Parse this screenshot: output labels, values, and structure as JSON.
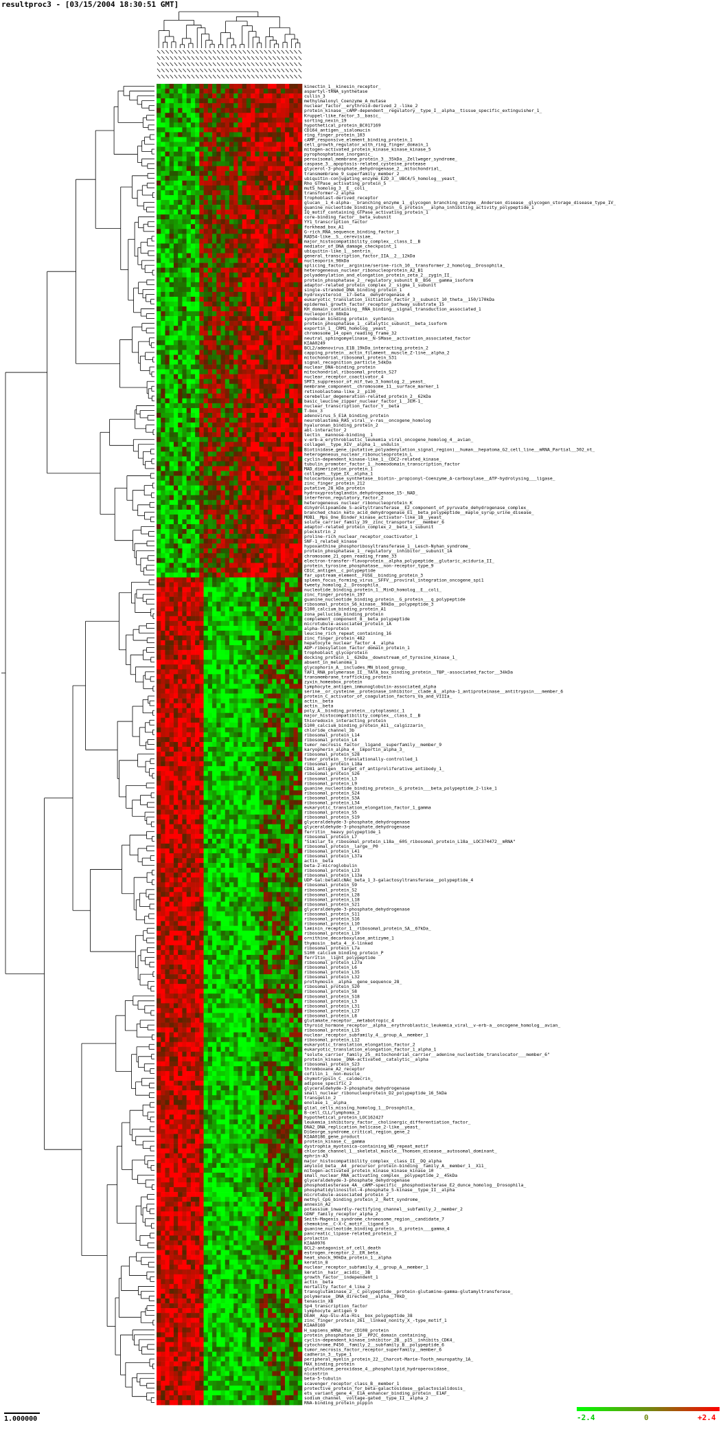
{
  "window": {
    "title": "resultproc3 - [03/15/2004 18:30:51  GMT]"
  },
  "scale": {
    "label": "1.000000"
  },
  "legend": {
    "min_label": "-2.4",
    "mid_label": "0",
    "max_label": "+2.4",
    "min_color": "#00ff00",
    "mid_color": "#6f8a10",
    "max_color": "#ff0000"
  },
  "chart_data": {
    "type": "heatmap",
    "columns": 34,
    "color_range": [
      -2.4,
      2.4
    ],
    "row_labels": [
      "kinectin_1__kinesin_receptor_",
      "aspartyl-tRNA_synthetase",
      "cullin_3",
      "methylmalonyl_Coenzyme_A_mutase",
      "nuclear_factor__erythroid-derived_2_-like_2",
      "protein_kinase__cAMP-dependent__regulatory__type_I__alpha__tissue_specific_extinguisher_1_",
      "Kruppel-like_factor_3__basic_",
      "sorting_nexin_19",
      "hypothetical_protein_BC017169",
      "CD164_antigen__sialomucin",
      "ring_finger_protein_103",
      "cAMP_responsive_element_binding_protein_1",
      "cell_growth_regulator_with_ring_finger_domain_1",
      "mitogen-activated_protein_kinase_kinase_kinase_5",
      "pyrophosphatase_inorganic_",
      "peroxisomal_membrane_protein_3__35kDa__Zellweger_syndrome_",
      "caspase_3__apoptosis-related_cysteine_protease",
      "glycerol-3-phosphate_dehydrogenase_2__mitochondrial_",
      "transmembrane_9_superfamily_member_2",
      "ubiquitin-conjugating_enzyme_E2D_3__UBC4/5_homolog__yeast_",
      "Rho_GTPase_activating_protein_5",
      "mutS_homolog_3__E__coli_",
      "transformer-2_alpha",
      "trophoblast-derived_receptor",
      "glucan__1_4-alpha-__branching_enzyme_1__glycogen_branching_enzyme__Andersen_disease__glycogen_storage_disease_type_IV_",
      "guanine_nucleotide_binding_protein__G_protein___alpha_inhibiting_activity_polypeptide_1",
      "IQ_motif_containing_GTPase_activating_protein_1",
      "core-binding_factor__beta_subunit",
      "YY1_transcription_factor",
      "forkhead_box_A1",
      "G-rich_RNA_sequence_binding_factor_1",
      "RAD54-like__S__cerevisiae_",
      "major_histocompatibility_complex__class_I__B",
      "mediator_of_DNA_damage_checkpoint_1",
      "ubiquitin-like_1__sentrin_",
      "general_transcription_factor_IIA__2__12kDa",
      "nucleoporin_98kDa",
      "splicing_factor__arginine/serine-rich_10__transformer_2_homolog__Drosophila_",
      "heterogeneous_nuclear_ribonucleoprotein_A2_B1",
      "polyadenylation_and_elongation_protein_zeta_2__zygin_II_",
      "protein_phosphatase_2__regulatory_subunit_B__B56___gamma_isoform",
      "adaptor-related_protein_complex_2__sigma_1_subunit",
      "single-stranded_DNA_binding_protein_1",
      "hydroxysteroid__17-beta__dehydrogenase_4",
      "eukaryotic_translation_initiation_factor_3__subunit_10_theta__150/170kDa",
      "epidermal_growth_factor_receptor_pathway_substrate_15",
      "KH_domain_containing__RNA_binding__signal_transduction_associated_1",
      "nucleoporin_88kDa",
      "syndecan_binding_protein__syntenin_",
      "protein_phosphatase_1__catalytic_subunit__beta_isoform",
      "exportin_1__CRM1_homolog__yeast_",
      "chromosome_14_open_reading_frame_32",
      "neutral_sphingomyelinase__N-SMase__activation_associated_factor",
      "KIAA0249",
      "BCL2/adenovirus_E1B_19kDa_interacting_protein_2",
      "capping_protein__actin_filament__muscle_Z-line__alpha_2",
      "mitochondrial_ribosomal_protein_S31",
      "signal_recognition_particle_54kDa",
      "nuclear_DNA-binding_protein",
      "mitochondrial_ribosomal_protein_S27",
      "nuclear_receptor_coactivator_4",
      "SMT3_suppressor_of_mif_two_3_homolog_2__yeast_",
      "membrane_component__chromosome_11__surface_marker_1",
      "retinoblastoma-like_2__p130_",
      "cerebellar_degeneration-related_protein_2__62kDa",
      "basic_leucine_zipper_nuclear_factor_1__JEM-1_",
      "nuclear_transcription_factor_Y__beta",
      "T-box_3",
      "adenovirus_5_E1A_binding_protein",
      "neuroblastoma_RAS_viral__v-ras__oncogene_homolog",
      "hyaluronan_binding_protein_2",
      "abl-interactor_2",
      "lectin__mannose-binding__1",
      "v-erb-a_erythroblastic_leukemia_viral_oncogene_homolog_4__avian_",
      "collagen__type_XIV__alpha_1__undulin_",
      "Biotinidase_gene_(putative_polyadenylation_signal_region)__human__hepatoma_G2_cell_line__mRNA_Partial__302_nt_",
      "heterogeneous_nuclear_ribonucleoprotein_L",
      "cyclin-dependent_kinase-like_1__CDC2-related_kinase_",
      "tubulin_promoter_factor_1__homeodomain_transcription_factor",
      "MAD_dimerization_protein_1",
      "collagen__type_IX__alpha_1",
      "holocarboxylase_synthetase__biotin-_propionyl-Coenzyme_A-carboxylase__ATP-hydrolysing___ligase_",
      "zinc_finger_protein_212",
      "putative_28_kDa_protein",
      "hydroxyprostaglandin_dehydrogenase_15-_NAD_",
      "interferon_regulatory_factor_2",
      "heterogeneous_nuclear_ribonucleoprotein_K",
      "dihydrolipoamide_S-acetyltransferase__E2_component_of_pyruvate_dehydrogenase_complex_",
      "branched_chain_keto_acid_dehydrogenase_E1__beta_polypeptide__maple_syrup_urine_disease_",
      "MOB1__Mps_One_Binder_kinase_activator-like_1B__yeast_",
      "solute_carrier_family_39__zinc_transporter___member_6",
      "adaptor-related_protein_complex_2__beta_1_subunit",
      "pleckstrin_2",
      "proline-rich_nuclear_receptor_coactivator_1",
      "SNF-1_related_kinase",
      "hypoxanthine_phosphoribosyltransferase_1__Lesch-Nyhan_syndrome_",
      "protein_phosphatase_1__regulatory__inhibitor__subunit_1A",
      "chromosome_21_open_reading_frame_33",
      "electron-transfer-flavoprotein__alpha_polypeptide__glutaric_aciduria_II_",
      "protein_tyrosine_phosphatase__non-receptor_type_9",
      "CD1C_antigen__c_polypeptide",
      "far_upstream_element__FUSE__binding_protein_3",
      "spleen_focus_forming_virus__SFFV__proviral_integration_oncogene_spi1",
      "tweety_homolog_2__Drosophila_",
      "nucleotide_binding_protein_1__MinD_homolog__E__coli_",
      "zinc_finger_protein_197",
      "guanine_nucleotide_binding_protein__G_protein___q_polypeptide",
      "ribosomal_protein_S6_kinase__90kDa__polypeptide_3",
      "S100_calcium_binding_protein_A1",
      "zona_pellucida_binding_protein",
      "complement_component_8__beta_polypeptide",
      "microtubule-associated_protein_1A",
      "alpha-fetoprotein",
      "leucine_rich_repeat_containing_16",
      "zinc_finger_protein_482",
      "hepatocyte_nuclear_factor_4__alpha",
      "ADP-ribosylation_factor_domain_protein_1",
      "trophoblast_glycoprotein",
      "docking_protein_1__62kDa__downstream_of_tyrosine_kinase_1_",
      "absent_in_melanoma_1",
      "glycophorin_A__includes_MN_blood_group_",
      "TAF1_RNA_polymerase_II__TATA_box_binding_protein__TBP_-associated_factor__34kDa",
      "transmembrane_trafficking_protein",
      "zyxin_homeobox_protein",
      "lymphocyte_antigen_immunoglobulin-associated_alpha",
      "serine__or_cysteine__proteinase_inhibitor__clade_A__alpha-1_antiproteinase__antitrypsin___member_6",
      "protein_C_activator_of_coagulation_factors_Va_and_VIIIa_",
      "actin__beta",
      "actin__beta",
      "poly_A__binding_protein__cytoplasmic_1",
      "major_histocompatibility_complex__class_I__B",
      "thioredoxin_interacting_protein",
      "S100_calcium_binding_protein_A11__calgizzarin_",
      "chloride_channel_3b",
      "ribosomal_protein_L14",
      "ribosomal_protein_L4",
      "tumor_necrosis_factor__ligand__superfamily__member_9",
      "karyopherin_alpha_4__importin_alpha_3_",
      "ribosomal_protein_S28",
      "tumor_protein__translationally-controlled_1",
      "ribosomal_protein_L18a",
      "CD81_antigen__target_of_antiproliferative_antibody_1_",
      "ribosomal_protein_S26",
      "ribosomal_protein_L3",
      "ribosomal_protein_L9",
      "guanine_nucleotide_binding_protein__G_protein___beta_polypeptide_2-like_1",
      "ribosomal_protein_S24",
      "ribosomal_protein_S3A",
      "ribosomal_protein_L34",
      "eukaryotic_translation_elongation_factor_1_gamma",
      "ribosomal_protein_S5",
      "ribosomal_protein_S19",
      "glyceraldehyde-3-phosphate_dehydrogenase",
      "glyceraldehyde-3-phosphate_dehydrogenase",
      "ferritin__heavy_polypeptide_1",
      "ribosomal_protein_L7",
      "\"Similar_to_ribosomal_protein_L18a__60S_ribosomal_protein_L18a__LOC374472__mRNA\"",
      "ribosomal_protein__large__P0",
      "ribosomal_protein_L41",
      "ribosomal_protein_L37a",
      "actin__beta",
      "beta-2-microglobulin",
      "ribosomal_protein_L23",
      "ribosomal_protein_L13a",
      "UDP-Gal:betaGlcNAc_beta_1_3-galactosyltransferase__polypeptide_4",
      "ribosomal_protein_S9",
      "ribosomal_protein_S2",
      "ribosomal_protein_L28",
      "ribosomal_protein_L18",
      "ribosomal_protein_S21",
      "glyceraldehyde-3-phosphate_dehydrogenase",
      "ribosomal_protein_S11",
      "ribosomal_protein_S16",
      "ribosomal_protein_L10",
      "laminin_receptor_1__ribosomal_protein_SA__67kDa_",
      "ribosomal_protein_L19",
      "ornithine_decarboxylase_antizyme_1",
      "thymosin__beta_4__X-linked",
      "ribosomal_protein_L7a",
      "S100_calcium_binding_protein_P",
      "ferritin__light_polypeptide",
      "ribosomal_protein_L27a",
      "ribosomal_protein_L6",
      "ribosomal_protein_L35",
      "ribosomal_protein_L32",
      "prothymosin__alpha__gene_sequence_28_",
      "ribosomal_protein_S20",
      "ribosomal_protein_S8",
      "ribosomal_protein_S18",
      "ribosomal_protein_L3",
      "ribosomal_protein_L31",
      "ribosomal_protein_L27",
      "ribosomal_protein_L8",
      "glutamate_receptor__metabotropic_4",
      "thyroid_hormone_receptor__alpha__erythroblastic_leukemia_viral__v-erb-a__oncogene_homolog__avian_",
      "ribosomal_protein_L15",
      "nuclear_receptor_subfamily_4__group_A__member_1",
      "ribosomal_protein_L12",
      "eukaryotic_translation_elongation_factor_2",
      "eukaryotic_translation_elongation_factor_1_alpha_1",
      "\"solute_carrier_family_25__mitochondrial_carrier__adenine_nucleotide_translocator___member_6\"",
      "protein_kinase__DNA-activated__catalytic__alpha",
      "ribosomal_protein_S23",
      "thromboxane_A2_receptor",
      "cofilin_1__non-muscle_",
      "chymotrypsin_C__caldecrin_",
      "adipose_specific_2",
      "glyceraldehyde-3-phosphate_dehydrogenase",
      "small_nuclear_ribonucleoprotein_D2_polypeptide_16_5kDa",
      "transgelin_2",
      "enolase_1__alpha_",
      "glial_cells_missing_homolog_1__Drosophila_",
      "B-cell_CLL/lymphoma_2",
      "hypothetical_protein_LOC162427",
      "leukemia_inhibitory_factor__cholinergic_differentiation_factor_",
      "DNA2_DNA_replication_helicase_2-like__yeast_",
      "DiGeorge_syndrome_critical_region_gene_2",
      "KIAA0186_gene_product",
      "protein_kinase_C__gamma",
      "dystrophia_myotonica-containing_WD_repeat_motif",
      "chloride_channel_1__skeletal_muscle__Thomsen_disease__autosomal_dominant_",
      "ephrin-A3",
      "major_histocompatibility_complex__class_II__DQ_alpha",
      "amyloid_beta__A4__precursor_protein-binding__family_A__member_1__X11_",
      "mitogen-activated_protein_kinase_kinase_kinase_10",
      "small_nuclear_RNA_activating_complex__polypeptide_2__45kDa",
      "glyceraldehyde-3-phosphate_dehydrogenase",
      "phosphodiesterase_4A__cAMP-specific__phosphodiesterase_E2_dunce_homolog__Drosophila_",
      "phosphatidylinositol-4-phosphate_5-kinase__type_II__alpha",
      "microtubule-associated_protein_2",
      "methyl_CpG_binding_protein_2__Rett_syndrome_",
      "annexin_A2",
      "potassium_inwardly-rectifying_channel__subfamily_J__member_2",
      "GDNF_family_receptor_alpha_2",
      "Smith-Magenis_syndrome_chromosome_region__candidate_7",
      "chemokine__C-X-C_motif__ligand_5",
      "guanine_nucleotide_binding_protein__G_protein___gamma_4",
      "pancreatic_lipase-related_protein_2",
      "prolactin",
      "KIAA0976",
      "BCL2-antagonist_of_cell_death",
      "estrogen_receptor_2__ER_beta_",
      "heat_shock_90kDa_protein_1__alpha",
      "keratin_8",
      "nuclear_receptor_subfamily_4__group_A__member_1",
      "keratin__hair__acidic__3B",
      "growth_factor__independent_1",
      "actin__beta",
      "mortality_factor_4_like_2",
      "transglutaminase_2__C_polypeptide__protein-glutamine-gamma-glutamyltransferase_",
      "polymerase__DNA_directed___alpha__70kD_",
      "tenascin_XB",
      "Sp4_transcription_factor",
      "lymphocyte_antigen_9",
      "DEAH__Asp-Glu-Ala-His__box_polypeptide_38",
      "zinc_finger_protein_261__linked_nonity_X_-type_motif_1",
      "KIAA0169",
      "H_sapiens_mRNA_for_CD108_protein",
      "protein_phosphatase_1F__PP2C_domain_containing_",
      "cyclin-dependent_kinase_inhibitor_2B__p15__inhibits_CDK4_",
      "cytochrome_P450__family_2__subfamily_B__polypeptide_6",
      "tumor_necrosis_factor_receptor_superfamily__member_6",
      "cadherin_3__type_1",
      "peripheral_myelin_protein_22__Charcot-Marie-Tooth_neuropathy_1A_",
      "MAX_binding_protein",
      "glutathione_peroxidase_4__phospholipid_hydroperoxidase_",
      "nicastrin",
      "beta-5-tubulin",
      "scavenger_receptor_class_B__member_1",
      "protective_protein_for_beta-galactosidase__galactosialidosis_",
      "ets_variant_gene_4__E1A_enhancer_binding_protein__E1AF_",
      "sodium_channel__voltage-gated__type_II__alpha_2",
      "RNA-binding_protein_pippin"
    ]
  }
}
